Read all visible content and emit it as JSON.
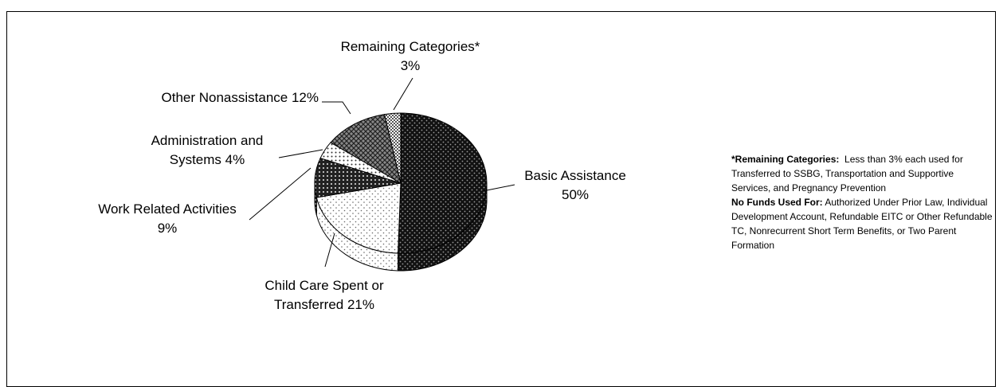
{
  "chart_data": {
    "type": "pie",
    "style": "3d",
    "slices": [
      {
        "label_lines": [
          "Basic Assistance",
          "50%"
        ],
        "value": 50,
        "pattern": "dark-dots"
      },
      {
        "label_lines": [
          "Child Care Spent or",
          "Transferred 21%"
        ],
        "value": 21,
        "pattern": "light-dots"
      },
      {
        "label_lines": [
          "Work Related Activities",
          "9%"
        ],
        "value": 9,
        "pattern": "dark-grid"
      },
      {
        "label_lines": [
          "Administration and",
          "Systems 4%"
        ],
        "value": 4,
        "pattern": "sparse-dots"
      },
      {
        "label_lines": [
          "Other Nonassistance 12%"
        ],
        "value": 12,
        "pattern": "crosshatch"
      },
      {
        "label_lines": [
          "Remaining Categories*",
          "3%"
        ],
        "value": 3,
        "pattern": "checker"
      }
    ]
  },
  "notes": {
    "remaining_heading": "*Remaining Categories:",
    "remaining_text": "Less than 3% each used for Transferred to SSBG, Transportation and Supportive Services,  and Pregnancy Prevention",
    "nofunds_heading": "No Funds Used For:",
    "nofunds_text": "Authorized Under Prior Law, Individual Development Account, Refundable EITC or Other Refundable TC, Nonrecurrent Short Term Benefits, or Two Parent Formation"
  }
}
